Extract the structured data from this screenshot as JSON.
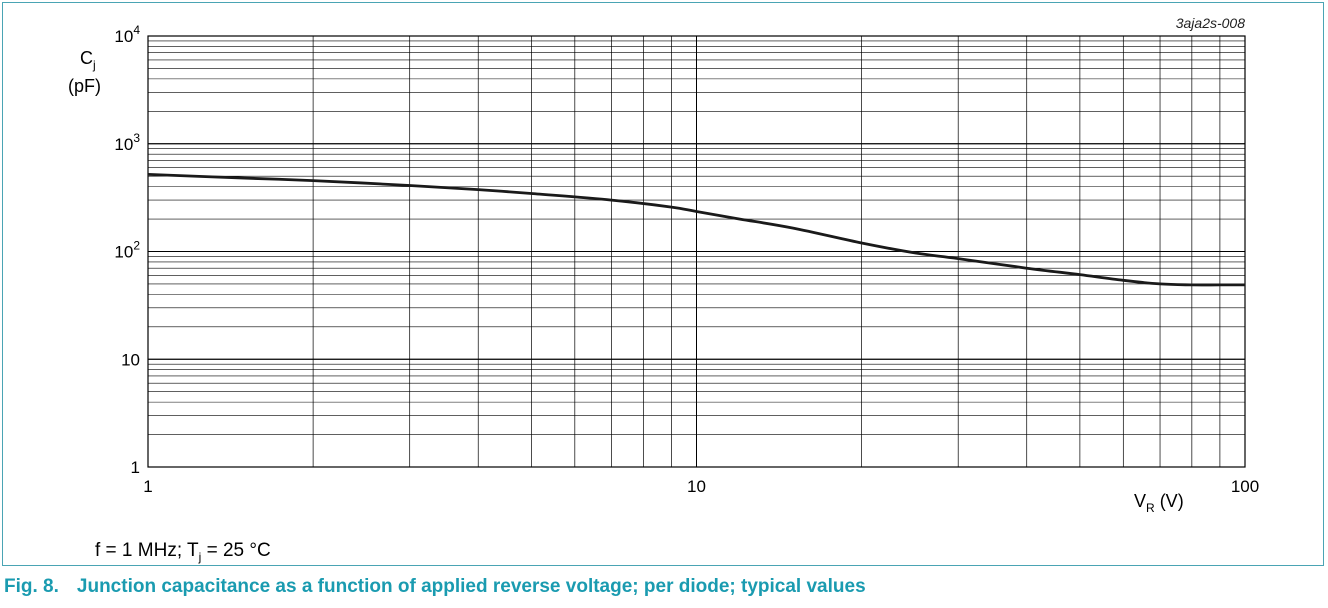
{
  "chart_data": {
    "type": "line",
    "code": "3aja2s-008",
    "x_scale": "log",
    "y_scale": "log",
    "xlim": [
      1,
      100
    ],
    "ylim": [
      1,
      10000
    ],
    "grid": true,
    "x_ticks": [
      {
        "value": 1,
        "label": "1"
      },
      {
        "value": 10,
        "label": "10"
      },
      {
        "value": 100,
        "label": "100"
      }
    ],
    "y_ticks": [
      {
        "value": 1,
        "base": "1",
        "exp": ""
      },
      {
        "value": 10,
        "base": "10",
        "exp": ""
      },
      {
        "value": 100,
        "base": "10",
        "exp": "2"
      },
      {
        "value": 1000,
        "base": "10",
        "exp": "3"
      },
      {
        "value": 10000,
        "base": "10",
        "exp": "4"
      }
    ],
    "y_label": {
      "symbol": "C",
      "sub": "j",
      "unit": "(pF)"
    },
    "x_label": {
      "symbol": "V",
      "sub": "R",
      "unit": "(V)"
    },
    "series": [
      {
        "x": [
          1,
          1.5,
          2,
          3,
          4,
          5,
          7,
          9,
          10,
          12,
          15,
          20,
          25,
          30,
          40,
          50,
          60,
          70,
          80,
          90,
          100
        ],
        "y": [
          520,
          480,
          455,
          410,
          375,
          345,
          300,
          258,
          235,
          200,
          165,
          120,
          97,
          86,
          70,
          61,
          54,
          50,
          49,
          49,
          49
        ]
      }
    ],
    "color": "#1a1a1a"
  },
  "conditions": {
    "f_part": "f = 1 MHz; T",
    "sub": "j",
    "rest": " = 25 °C"
  },
  "caption": {
    "number": "Fig. 8.",
    "text": "Junction capacitance as a function of applied reverse voltage; per diode; typical values"
  }
}
